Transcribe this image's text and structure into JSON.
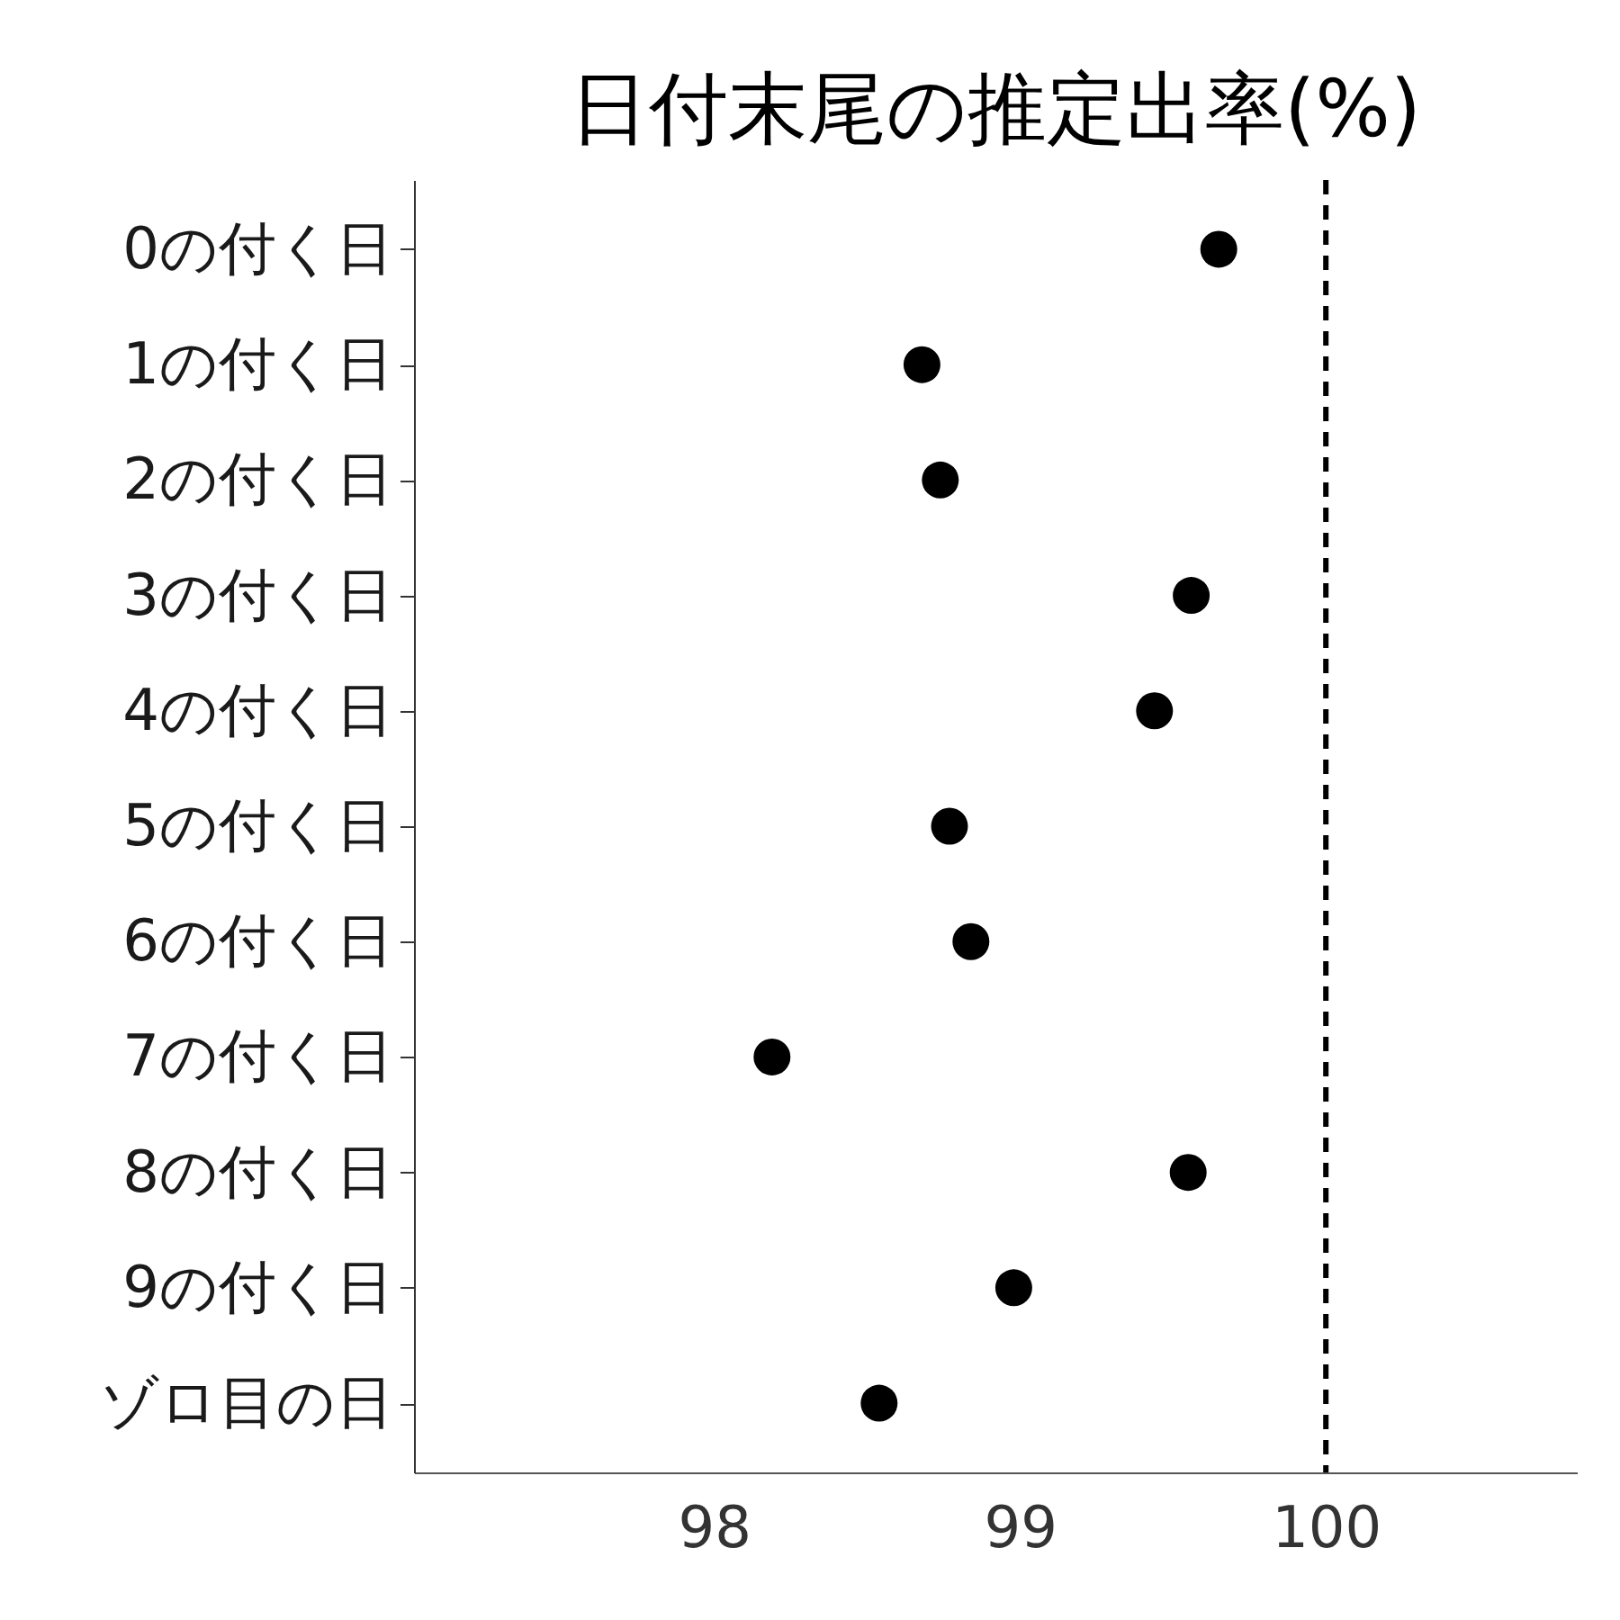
{
  "chart_data": {
    "type": "scatter",
    "title": "日付末尾の推定出率(%)",
    "orientation": "horizontal",
    "categories": [
      "0の付く日",
      "1の付く日",
      "2の付く日",
      "3の付く日",
      "4の付く日",
      "5の付く日",
      "6の付く日",
      "7の付く日",
      "8の付く日",
      "9の付く日",
      "ゾロ目の日"
    ],
    "series": [
      {
        "color": "#000000",
        "values": [
          99.65,
          98.68,
          98.74,
          99.56,
          99.44,
          98.77,
          98.84,
          98.19,
          99.55,
          98.98,
          98.54
        ]
      }
    ],
    "xlim": [
      97.02,
      100.82
    ],
    "xticks": [
      98,
      99,
      100
    ],
    "marker": "circle",
    "grid": false,
    "legend": false,
    "ref_lines": [
      {
        "axis": "x",
        "value": 100,
        "color": "#000000",
        "line_style": "dashed"
      }
    ]
  }
}
